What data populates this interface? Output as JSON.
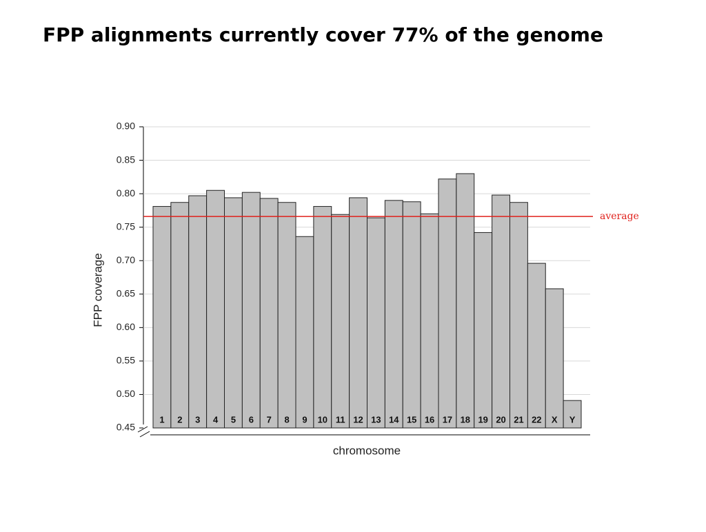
{
  "chart_data": {
    "type": "bar",
    "title": "FPP alignments currently cover 77% of the genome",
    "xlabel": "chromosome",
    "ylabel": "FPP coverage",
    "categories": [
      "1",
      "2",
      "3",
      "4",
      "5",
      "6",
      "7",
      "8",
      "9",
      "10",
      "11",
      "12",
      "13",
      "14",
      "15",
      "16",
      "17",
      "18",
      "19",
      "20",
      "21",
      "22",
      "X",
      "Y"
    ],
    "values": [
      0.781,
      0.787,
      0.797,
      0.805,
      0.794,
      0.802,
      0.793,
      0.787,
      0.736,
      0.781,
      0.769,
      0.794,
      0.764,
      0.79,
      0.788,
      0.77,
      0.822,
      0.83,
      0.742,
      0.798,
      0.787,
      0.696,
      0.658,
      0.491
    ],
    "color": "#c0c0c0",
    "ylim": [
      0.45,
      0.9
    ],
    "yticks": [
      {
        "value": 0.45,
        "label": "0.45"
      },
      {
        "value": 0.5,
        "label": "0.50"
      },
      0.55,
      {
        "value": 0.6,
        "label": "0.60"
      },
      0.65,
      {
        "value": 0.7,
        "label": "0.70"
      },
      0.75,
      {
        "value": 0.8,
        "label": "0.80"
      },
      0.85,
      {
        "value": 0.9,
        "label": "0.90"
      }
    ],
    "grid": true,
    "reference_line": {
      "value": 0.766,
      "label": "average",
      "color": "#e0201b"
    }
  }
}
